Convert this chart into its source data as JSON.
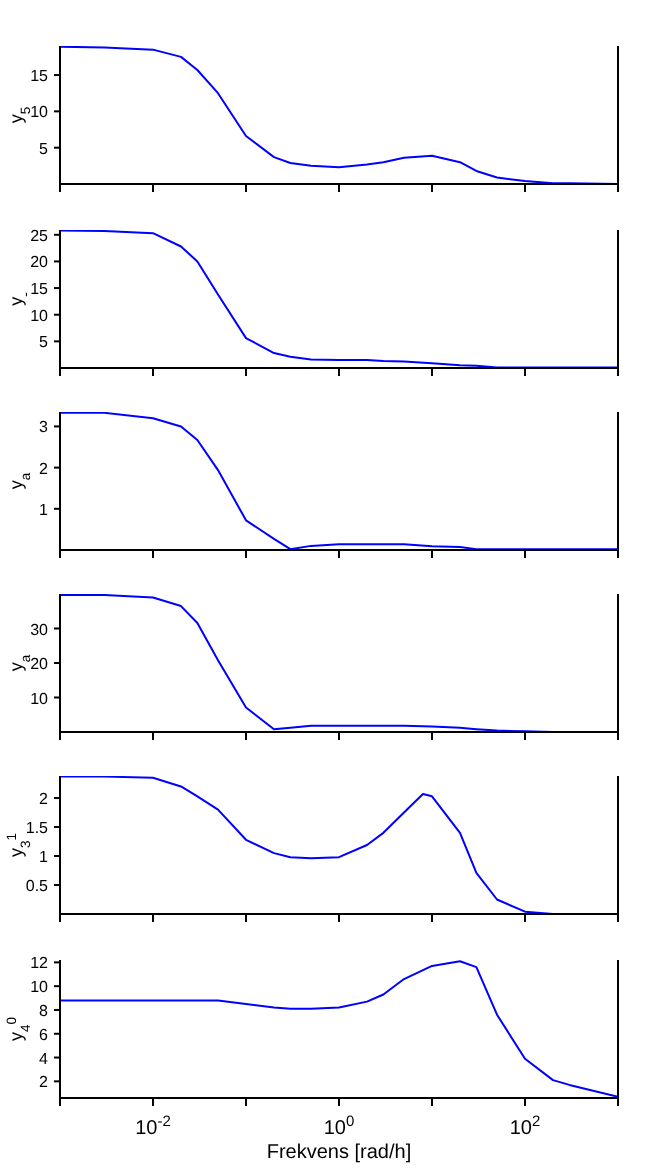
{
  "chart_data": [
    {
      "type": "line",
      "ylabel": "y$_{5}$",
      "log": "x",
      "tick_labels": "y",
      "xlim": [
        0.001,
        1000
      ],
      "xticks": [
        {
          "value": 0.001,
          "label": null
        },
        {
          "value": 0.01,
          "label": null
        },
        {
          "value": 0.1,
          "label": null
        },
        {
          "value": 1,
          "label": null
        },
        {
          "value": 10,
          "label": null
        },
        {
          "value": 100,
          "label": null
        },
        {
          "value": 1000,
          "label": null
        }
      ],
      "ylim": [
        0,
        19
      ],
      "yticks": [
        5,
        10,
        15
      ],
      "x": [
        0.001,
        0.003,
        0.01,
        0.02,
        0.03,
        0.05,
        0.1,
        0.2,
        0.3,
        0.5,
        1,
        2,
        3,
        5,
        10,
        20,
        30,
        50,
        100,
        200,
        300,
        1000
      ],
      "series": [
        {
          "color": "#0000ff",
          "values": [
            18.9,
            18.8,
            18.5,
            17.5,
            15.7,
            12.5,
            6.6,
            3.7,
            2.9,
            2.5,
            2.3,
            2.7,
            3.0,
            3.6,
            3.9,
            3.0,
            1.8,
            0.9,
            0.4,
            0.1,
            0.1,
            0
          ]
        }
      ]
    },
    {
      "type": "line",
      "ylabel": "y$_{-}$",
      "log": "x",
      "tick_labels": "y",
      "xlim": [
        0.001,
        1000
      ],
      "xticks": [
        {
          "value": 0.001,
          "label": null
        },
        {
          "value": 0.01,
          "label": null
        },
        {
          "value": 0.1,
          "label": null
        },
        {
          "value": 1,
          "label": null
        },
        {
          "value": 10,
          "label": null
        },
        {
          "value": 100,
          "label": null
        },
        {
          "value": 1000,
          "label": null
        }
      ],
      "ylim": [
        0,
        25.9
      ],
      "yticks": [
        5,
        10,
        15,
        20,
        25
      ],
      "x": [
        0.001,
        0.003,
        0.01,
        0.02,
        0.03,
        0.05,
        0.1,
        0.2,
        0.3,
        0.5,
        1,
        2,
        3,
        5,
        10,
        20,
        30,
        50,
        100,
        200,
        300,
        1000
      ],
      "series": [
        {
          "color": "#0000ff",
          "values": [
            25.8,
            25.7,
            25.3,
            22.8,
            20,
            13.8,
            5.6,
            2.8,
            2.1,
            1.6,
            1.5,
            1.5,
            1.3,
            1.2,
            0.9,
            0.5,
            0.4,
            0.1,
            0.1,
            0.1,
            0.1,
            0.1
          ]
        }
      ]
    },
    {
      "type": "line",
      "ylabel": "y$_{a}$",
      "log": "x",
      "tick_labels": "y",
      "xlim": [
        0.001,
        1000
      ],
      "xticks": [
        {
          "value": 0.001,
          "label": null
        },
        {
          "value": 0.01,
          "label": null
        },
        {
          "value": 0.1,
          "label": null
        },
        {
          "value": 1,
          "label": null
        },
        {
          "value": 10,
          "label": null
        },
        {
          "value": 100,
          "label": null
        },
        {
          "value": 1000,
          "label": null
        }
      ],
      "ylim": [
        0,
        3.35
      ],
      "yticks": [
        1,
        2,
        3
      ],
      "x": [
        0.001,
        0.003,
        0.01,
        0.02,
        0.03,
        0.05,
        0.1,
        0.2,
        0.3,
        0.5,
        1,
        2,
        3,
        5,
        10,
        20,
        30,
        50,
        100,
        200,
        300,
        1000
      ],
      "series": [
        {
          "color": "#0000ff",
          "values": [
            3.33,
            3.33,
            3.2,
            3.0,
            2.67,
            1.94,
            0.72,
            0.27,
            0.02,
            0.1,
            0.14,
            0.14,
            0.14,
            0.14,
            0.09,
            0.07,
            0.02,
            0.02,
            0.02,
            0.02,
            0.02,
            0.02
          ]
        }
      ]
    },
    {
      "type": "line",
      "ylabel": "y$_{a}$",
      "log": "x",
      "tick_labels": "y",
      "xlim": [
        0.001,
        1000
      ],
      "xticks": [
        {
          "value": 0.001,
          "label": null
        },
        {
          "value": 0.01,
          "label": null
        },
        {
          "value": 0.1,
          "label": null
        },
        {
          "value": 1,
          "label": null
        },
        {
          "value": 10,
          "label": null
        },
        {
          "value": 100,
          "label": null
        },
        {
          "value": 1000,
          "label": null
        }
      ],
      "ylim": [
        0,
        40
      ],
      "yticks": [
        10,
        20,
        30
      ],
      "x": [
        0.001,
        0.003,
        0.01,
        0.02,
        0.03,
        0.05,
        0.1,
        0.2,
        0.3,
        0.5,
        1,
        2,
        3,
        5,
        10,
        20,
        30,
        50,
        100,
        200,
        300,
        1000
      ],
      "series": [
        {
          "color": "#0000ff",
          "values": [
            39.7,
            39.7,
            39,
            36.5,
            31.6,
            20.8,
            7.1,
            0.8,
            1.2,
            1.8,
            1.8,
            1.8,
            1.8,
            1.8,
            1.6,
            1.2,
            0.8,
            0.4,
            0.2,
            0,
            0,
            0
          ]
        }
      ]
    },
    {
      "type": "line",
      "ylabel": "y$_{3}$$^{1}$",
      "log": "x",
      "tick_labels": "y",
      "xlim": [
        0.001,
        1000
      ],
      "xticks": [
        {
          "value": 0.001,
          "label": null
        },
        {
          "value": 0.01,
          "label": null
        },
        {
          "value": 0.1,
          "label": null
        },
        {
          "value": 1,
          "label": null
        },
        {
          "value": 10,
          "label": null
        },
        {
          "value": 100,
          "label": null
        },
        {
          "value": 1000,
          "label": null
        }
      ],
      "ylim": [
        0,
        2.38
      ],
      "yticks": [
        0.5,
        1,
        1.5,
        2
      ],
      "x": [
        0.001,
        0.003,
        0.01,
        0.02,
        0.03,
        0.05,
        0.1,
        0.2,
        0.3,
        0.5,
        1,
        2,
        3,
        5,
        8,
        10,
        20,
        30,
        50,
        100,
        200,
        1000
      ],
      "series": [
        {
          "color": "#0000ff",
          "values": [
            2.37,
            2.37,
            2.35,
            2.2,
            2.03,
            1.8,
            1.28,
            1.05,
            0.98,
            0.96,
            0.98,
            1.19,
            1.4,
            1.75,
            2.07,
            2.03,
            1.4,
            0.71,
            0.25,
            0.04,
            0,
            0
          ]
        }
      ]
    },
    {
      "type": "line",
      "ylabel": "y$_{4}$$^{0}$",
      "xlabel": "Frekvens [rad/h]",
      "log": "x",
      "xlim": [
        0.001,
        1000
      ],
      "xticks": [
        {
          "value": 0.001,
          "label": null
        },
        {
          "value": 0.01,
          "label": "10$^{-2}$"
        },
        {
          "value": 0.1,
          "label": null
        },
        {
          "value": 1,
          "label": "10$^{0}$"
        },
        {
          "value": 10,
          "label": null
        },
        {
          "value": 100,
          "label": "10$^{2}$"
        },
        {
          "value": 1000,
          "label": null
        }
      ],
      "ylim": [
        0.6,
        12.2
      ],
      "yticks": [
        2,
        4,
        6,
        8,
        10,
        12
      ],
      "x": [
        0.001,
        0.003,
        0.01,
        0.02,
        0.03,
        0.05,
        0.1,
        0.2,
        0.3,
        0.5,
        1,
        2,
        3,
        5,
        10,
        20,
        30,
        50,
        100,
        200,
        300,
        1000
      ],
      "series": [
        {
          "color": "#0000ff",
          "values": [
            8.8,
            8.8,
            8.8,
            8.8,
            8.8,
            8.8,
            8.5,
            8.2,
            8.1,
            8.1,
            8.2,
            8.7,
            9.3,
            10.6,
            11.7,
            12.1,
            11.6,
            7.6,
            3.9,
            2.1,
            1.7,
            0.7
          ]
        }
      ]
    }
  ]
}
